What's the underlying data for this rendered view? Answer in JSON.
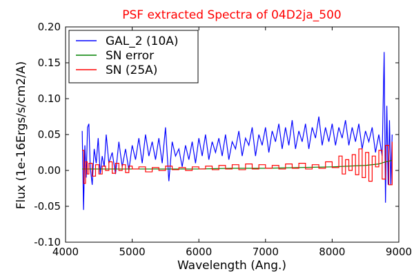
{
  "chart_data": {
    "type": "line",
    "title": "PSF extracted Spectra of 04D2ja_500",
    "title_color": "#ff0000",
    "xlabel": "Wavelength (Ang.)",
    "ylabel": "Flux (1e-16Ergs/s/cm2/A)",
    "xlim": [
      4000,
      9000
    ],
    "ylim": [
      -0.1,
      0.2
    ],
    "x_ticks": [
      4000,
      5000,
      6000,
      7000,
      8000,
      9000
    ],
    "x_tick_labels": [
      "4000",
      "5000",
      "6000",
      "7000",
      "8000",
      "9000"
    ],
    "y_ticks": [
      -0.1,
      -0.05,
      0.0,
      0.05,
      0.1,
      0.15,
      0.2
    ],
    "y_tick_labels": [
      "-0.10",
      "-0.05",
      "0.00",
      "0.05",
      "0.10",
      "0.15",
      "0.20"
    ],
    "grid": false,
    "legend_position": "top-left",
    "series": [
      {
        "name": "GAL_2 (10A)",
        "color": "#0000ff",
        "style": "line",
        "x": [
          4250,
          4270,
          4290,
          4310,
          4330,
          4350,
          4370,
          4400,
          4430,
          4460,
          4490,
          4520,
          4550,
          4580,
          4610,
          4650,
          4700,
          4750,
          4800,
          4850,
          4900,
          4950,
          5000,
          5050,
          5100,
          5150,
          5200,
          5250,
          5300,
          5350,
          5400,
          5450,
          5500,
          5550,
          5600,
          5650,
          5700,
          5750,
          5800,
          5850,
          5900,
          5950,
          6000,
          6050,
          6100,
          6150,
          6200,
          6250,
          6300,
          6350,
          6400,
          6450,
          6500,
          6550,
          6600,
          6650,
          6700,
          6750,
          6800,
          6850,
          6900,
          6950,
          7000,
          7050,
          7100,
          7150,
          7200,
          7250,
          7300,
          7350,
          7400,
          7450,
          7500,
          7550,
          7600,
          7650,
          7700,
          7750,
          7800,
          7850,
          7900,
          7950,
          8000,
          8050,
          8100,
          8150,
          8200,
          8250,
          8300,
          8350,
          8400,
          8450,
          8500,
          8550,
          8600,
          8650,
          8700,
          8750,
          8780,
          8800,
          8820,
          8840,
          8860,
          8880,
          8900
        ],
        "y": [
          0.055,
          -0.055,
          0.035,
          -0.01,
          0.06,
          0.065,
          0.005,
          -0.02,
          0.03,
          0.01,
          0.045,
          -0.005,
          0.02,
          0.005,
          0.05,
          0.01,
          0.025,
          -0.005,
          0.04,
          0.005,
          0.03,
          0.0,
          0.035,
          0.015,
          0.045,
          0.01,
          0.05,
          0.02,
          0.04,
          0.015,
          0.045,
          0.01,
          0.06,
          -0.015,
          0.04,
          0.02,
          0.03,
          0.005,
          0.035,
          0.015,
          0.04,
          0.01,
          0.045,
          0.02,
          0.05,
          0.015,
          0.04,
          0.025,
          0.045,
          0.02,
          0.05,
          0.015,
          0.04,
          0.03,
          0.055,
          0.02,
          0.045,
          0.035,
          0.06,
          0.02,
          0.05,
          0.035,
          0.06,
          0.025,
          0.055,
          0.04,
          0.065,
          0.03,
          0.06,
          0.035,
          0.07,
          0.03,
          0.055,
          0.04,
          0.065,
          0.03,
          0.06,
          0.045,
          0.075,
          0.035,
          0.06,
          0.04,
          0.065,
          0.035,
          0.06,
          0.045,
          0.07,
          0.035,
          0.06,
          0.04,
          0.065,
          0.03,
          0.055,
          0.04,
          0.06,
          0.025,
          0.05,
          0.02,
          0.165,
          -0.045,
          0.09,
          -0.02,
          0.07,
          -0.02,
          0.05
        ]
      },
      {
        "name": "SN error",
        "color": "#008000",
        "style": "line",
        "x": [
          4250,
          4500,
          5000,
          5500,
          6000,
          6500,
          7000,
          7500,
          8000,
          8500,
          8700,
          8800,
          8900
        ],
        "y": [
          0.002,
          0.002,
          0.002,
          0.002,
          0.002,
          0.003,
          0.003,
          0.004,
          0.005,
          0.007,
          0.009,
          0.012,
          0.014
        ]
      },
      {
        "name": "SN (25A)",
        "color": "#ff0000",
        "style": "step",
        "x": [
          4250,
          4275,
          4300,
          4325,
          4350,
          4400,
          4450,
          4500,
          4550,
          4600,
          4650,
          4700,
          4750,
          4800,
          4850,
          4900,
          4950,
          5000,
          5100,
          5200,
          5300,
          5400,
          5500,
          5600,
          5700,
          5800,
          5900,
          6000,
          6100,
          6200,
          6300,
          6400,
          6500,
          6600,
          6700,
          6800,
          6900,
          7000,
          7100,
          7200,
          7300,
          7400,
          7500,
          7600,
          7700,
          7800,
          7900,
          8000,
          8100,
          8150,
          8200,
          8250,
          8300,
          8350,
          8400,
          8450,
          8500,
          8550,
          8600,
          8650,
          8700,
          8750,
          8800,
          8850,
          8900
        ],
        "y": [
          0.028,
          -0.018,
          0.012,
          -0.005,
          0.01,
          -0.008,
          0.008,
          -0.005,
          0.006,
          0.0,
          0.012,
          -0.004,
          0.01,
          0.0,
          0.008,
          -0.003,
          0.006,
          0.002,
          0.005,
          -0.002,
          0.004,
          0.0,
          0.006,
          0.001,
          0.004,
          0.0,
          0.005,
          0.002,
          0.006,
          0.001,
          0.007,
          0.002,
          0.008,
          0.001,
          0.009,
          0.002,
          0.008,
          0.003,
          0.007,
          0.002,
          0.009,
          0.003,
          0.01,
          0.002,
          0.008,
          0.003,
          0.012,
          0.004,
          0.02,
          -0.005,
          0.015,
          0.0,
          0.022,
          -0.006,
          0.03,
          -0.01,
          0.025,
          -0.015,
          0.02,
          0.005,
          0.028,
          -0.012,
          0.035,
          -0.02,
          0.04
        ]
      }
    ]
  }
}
